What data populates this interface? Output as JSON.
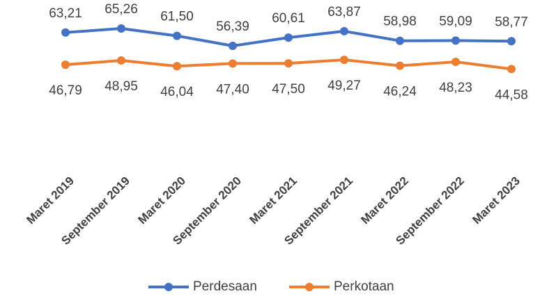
{
  "chart_data": {
    "type": "line",
    "categories": [
      "Maret 2019",
      "September 2019",
      "Maret 2020",
      "September 2020",
      "Maret 2021",
      "September 2021",
      "Maret 2022",
      "September 2022",
      "Maret 2023"
    ],
    "series": [
      {
        "name": "Perdesaan",
        "color": "#4472c4",
        "values": [
          63.21,
          65.26,
          61.5,
          56.39,
          60.61,
          63.87,
          58.98,
          59.09,
          58.77
        ],
        "value_labels": [
          "63,21",
          "65,26",
          "61,50",
          "56,39",
          "60,61",
          "63,87",
          "58,98",
          "59,09",
          "58,77"
        ]
      },
      {
        "name": "Perkotaan",
        "color": "#ed7d31",
        "values": [
          46.79,
          48.95,
          46.04,
          47.4,
          47.5,
          49.27,
          46.24,
          48.23,
          44.58
        ],
        "value_labels": [
          "46,79",
          "48,95",
          "46,04",
          "47,40",
          "47,50",
          "49,27",
          "46,24",
          "48,23",
          "44,58"
        ]
      }
    ]
  }
}
